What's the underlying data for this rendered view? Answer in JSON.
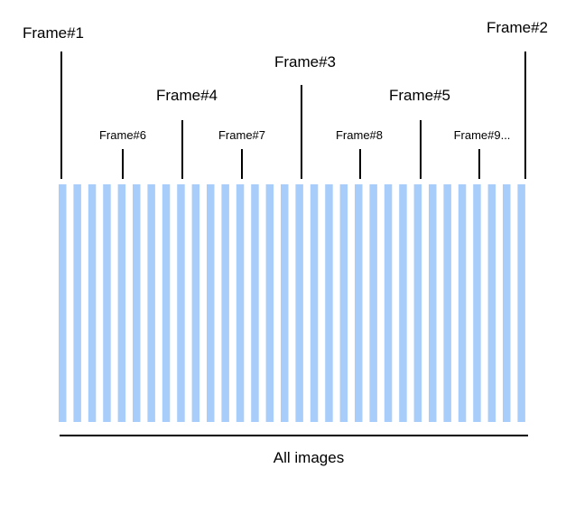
{
  "colors": {
    "background": "#ffffff",
    "stripe": "#a9cdfb",
    "line": "#000000",
    "text": "#000000"
  },
  "stripe_count": 32,
  "frames": [
    {
      "id": "frame-1",
      "label": "Frame#1",
      "level": 1
    },
    {
      "id": "frame-2",
      "label": "Frame#2",
      "level": 1
    },
    {
      "id": "frame-3",
      "label": "Frame#3",
      "level": 2
    },
    {
      "id": "frame-4",
      "label": "Frame#4",
      "level": 3
    },
    {
      "id": "frame-5",
      "label": "Frame#5",
      "level": 3
    },
    {
      "id": "frame-6",
      "label": "Frame#6",
      "level": 4
    },
    {
      "id": "frame-7",
      "label": "Frame#7",
      "level": 4
    },
    {
      "id": "frame-8",
      "label": "Frame#8",
      "level": 4
    },
    {
      "id": "frame-9",
      "label": "Frame#9...",
      "level": 4
    }
  ],
  "bottom_label": "All images"
}
